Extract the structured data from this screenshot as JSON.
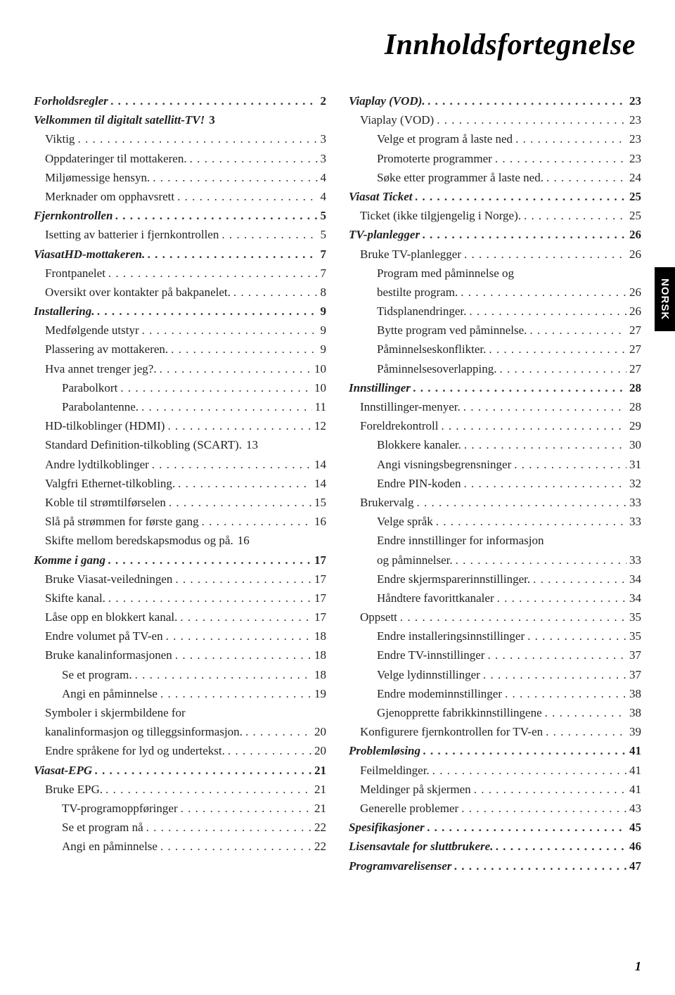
{
  "title": "Innholdsfortegnelse",
  "side_tab": "NORSK",
  "page_number": "1",
  "colors": {
    "background": "#ffffff",
    "text": "#222222",
    "tab_bg": "#000000",
    "tab_text": "#ffffff"
  },
  "left": [
    {
      "label": "Forholdsregler",
      "page": "2",
      "level": 0
    },
    {
      "label": "Velkommen til digitalt satellitt-TV!",
      "page": "3",
      "level": 0,
      "nodots": true
    },
    {
      "label": "Viktig",
      "page": "3",
      "level": 1
    },
    {
      "label": "Oppdateringer til mottakeren.",
      "page": "3",
      "level": 1
    },
    {
      "label": "Miljømessige hensyn.",
      "page": "4",
      "level": 1
    },
    {
      "label": "Merknader om opphavsrett",
      "page": "4",
      "level": 1
    },
    {
      "label": "Fjernkontrollen",
      "page": "5",
      "level": 0
    },
    {
      "label": "Isetting av batterier i fjernkontrollen",
      "page": "5",
      "level": 1
    },
    {
      "label": "ViasatHD-mottakeren.",
      "page": "7",
      "level": 0
    },
    {
      "label": "Frontpanelet",
      "page": "7",
      "level": 1
    },
    {
      "label": "Oversikt over kontakter på bakpanelet.",
      "page": "8",
      "level": 1
    },
    {
      "label": "Installering.",
      "page": "9",
      "level": 0
    },
    {
      "label": "Medfølgende utstyr",
      "page": "9",
      "level": 1
    },
    {
      "label": "Plassering av mottakeren.",
      "page": "9",
      "level": 1
    },
    {
      "label": "Hva annet trenger jeg?.",
      "page": "10",
      "level": 1
    },
    {
      "label": "Parabolkort",
      "page": "10",
      "level": 2
    },
    {
      "label": "Parabolantenne.",
      "page": "11",
      "level": 2
    },
    {
      "label": "HD-tilkoblinger (HDMI)",
      "page": "12",
      "level": 1
    },
    {
      "label": "Standard Definition-tilkobling (SCART).",
      "page": "13",
      "level": 1,
      "nodots": true
    },
    {
      "label": "Andre lydtilkoblinger",
      "page": "14",
      "level": 1
    },
    {
      "label": "Valgfri Ethernet-tilkobling.",
      "page": "14",
      "level": 1
    },
    {
      "label": "Koble til strømtilførselen",
      "page": "15",
      "level": 1
    },
    {
      "label": "Slå på strømmen for første gang",
      "page": "16",
      "level": 1
    },
    {
      "label": "Skifte mellom beredskapsmodus og på.",
      "page": "16",
      "level": 1,
      "nodots": true
    },
    {
      "label": "Komme i gang",
      "page": "17",
      "level": 0
    },
    {
      "label": "Bruke Viasat-veiledningen",
      "page": "17",
      "level": 1
    },
    {
      "label": "Skifte kanal.",
      "page": "17",
      "level": 1
    },
    {
      "label": "Låse opp en blokkert kanal.",
      "page": "17",
      "level": 1
    },
    {
      "label": "Endre volumet på TV-en",
      "page": "18",
      "level": 1
    },
    {
      "label": "Bruke kanalinformasjonen",
      "page": "18",
      "level": 1
    },
    {
      "label": "Se et program.",
      "page": "18",
      "level": 2
    },
    {
      "label": "Angi en påminnelse",
      "page": "19",
      "level": 2
    },
    {
      "label": "Symboler i skjermbildene for kanalinformasjon og tilleggsinformasjon.",
      "page": "20",
      "level": 1,
      "wrap": true
    },
    {
      "label": "Endre språkene for lyd og undertekst.",
      "page": "20",
      "level": 1
    },
    {
      "label": "Viasat-EPG",
      "page": "21",
      "level": 0
    },
    {
      "label": "Bruke EPG.",
      "page": "21",
      "level": 1
    },
    {
      "label": "TV-programoppføringer",
      "page": "21",
      "level": 2
    },
    {
      "label": "Se et program nå",
      "page": "22",
      "level": 2
    },
    {
      "label": "Angi en påminnelse",
      "page": "22",
      "level": 2
    }
  ],
  "right": [
    {
      "label": "Viaplay (VOD).",
      "page": "23",
      "level": 0
    },
    {
      "label": "Viaplay (VOD)",
      "page": "23",
      "level": 1
    },
    {
      "label": "Velge et program å laste ned",
      "page": "23",
      "level": 2
    },
    {
      "label": "Promoterte programmer",
      "page": "23",
      "level": 2
    },
    {
      "label": "Søke etter programmer å laste ned.",
      "page": "24",
      "level": 2
    },
    {
      "label": "Viasat Ticket",
      "page": "25",
      "level": 0
    },
    {
      "label": "Ticket (ikke tilgjengelig i Norge).",
      "page": "25",
      "level": 1
    },
    {
      "label": "TV-planlegger",
      "page": "26",
      "level": 0
    },
    {
      "label": "Bruke TV-planlegger",
      "page": "26",
      "level": 1
    },
    {
      "label": "Program med påminnelse og bestilte program.",
      "page": "26",
      "level": 2,
      "wrap": true
    },
    {
      "label": "Tidsplanendringer.",
      "page": "26",
      "level": 2
    },
    {
      "label": "Bytte program ved påminnelse.",
      "page": "27",
      "level": 2
    },
    {
      "label": "Påminnelseskonflikter.",
      "page": "27",
      "level": 2
    },
    {
      "label": "Påminnelsesoverlapping.",
      "page": "27",
      "level": 2
    },
    {
      "label": "Innstillinger",
      "page": "28",
      "level": 0
    },
    {
      "label": "Innstillinger-menyer.",
      "page": "28",
      "level": 1
    },
    {
      "label": "Foreldrekontroll",
      "page": "29",
      "level": 1
    },
    {
      "label": "Blokkere kanaler.",
      "page": "30",
      "level": 2
    },
    {
      "label": "Angi visningsbegrensninger",
      "page": "31",
      "level": 2
    },
    {
      "label": "Endre PIN-koden",
      "page": "32",
      "level": 2
    },
    {
      "label": "Brukervalg",
      "page": "33",
      "level": 1
    },
    {
      "label": "Velge språk",
      "page": "33",
      "level": 2
    },
    {
      "label": "Endre innstillinger for informasjon og påminnelser.",
      "page": "33",
      "level": 2,
      "wrap": true
    },
    {
      "label": "Endre skjermsparerinnstillinger.",
      "page": "34",
      "level": 2
    },
    {
      "label": "Håndtere favorittkanaler",
      "page": "34",
      "level": 2
    },
    {
      "label": "Oppsett",
      "page": "35",
      "level": 1
    },
    {
      "label": "Endre installeringsinnstillinger",
      "page": "35",
      "level": 2
    },
    {
      "label": "Endre TV-innstillinger",
      "page": "37",
      "level": 2
    },
    {
      "label": "Velge lydinnstillinger",
      "page": "37",
      "level": 2
    },
    {
      "label": "Endre modeminnstillinger",
      "page": "38",
      "level": 2
    },
    {
      "label": "Gjenopprette fabrikkinnstillingene",
      "page": "38",
      "level": 2
    },
    {
      "label": "Konfigurere fjernkontrollen for TV-en",
      "page": "39",
      "level": 1
    },
    {
      "label": "Problemløsing",
      "page": "41",
      "level": 0
    },
    {
      "label": "Feilmeldinger.",
      "page": "41",
      "level": 1
    },
    {
      "label": "Meldinger på skjermen",
      "page": "41",
      "level": 1
    },
    {
      "label": "Generelle problemer",
      "page": "43",
      "level": 1
    },
    {
      "label": "Spesifikasjoner",
      "page": "45",
      "level": 0
    },
    {
      "label": "Lisensavtale for sluttbrukere.",
      "page": "46",
      "level": 0
    },
    {
      "label": "Programvarelisenser",
      "page": "47",
      "level": 0
    }
  ]
}
